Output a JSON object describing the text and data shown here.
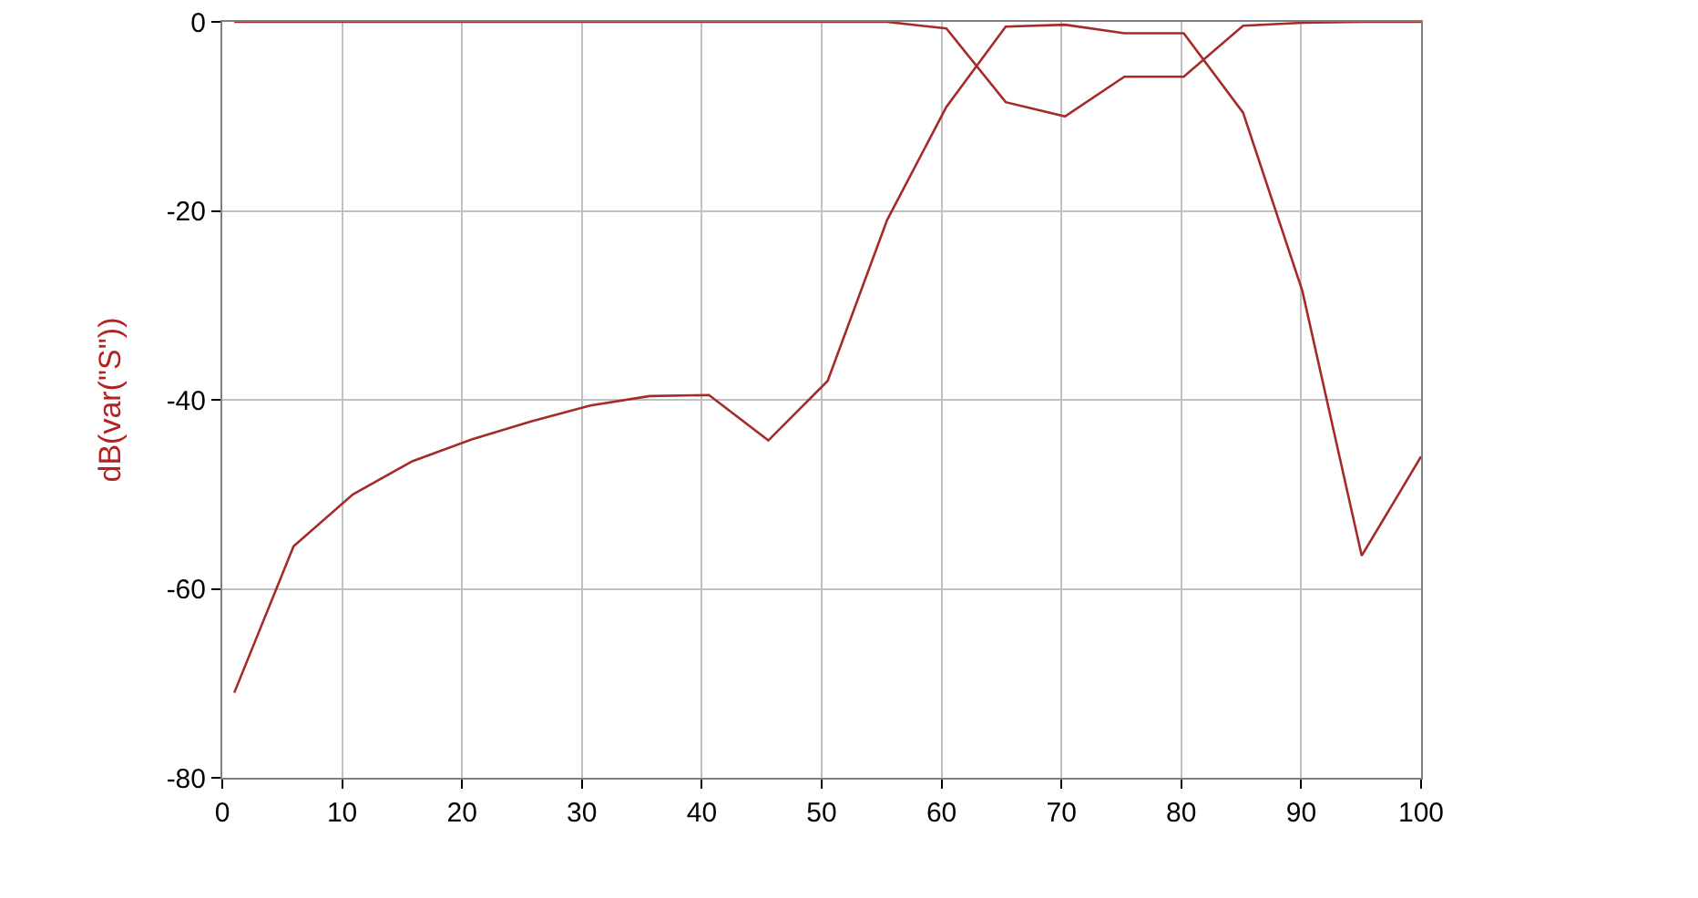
{
  "chart_data": {
    "type": "line",
    "ylabel": "dB(var(\"S\"))",
    "x": [
      1,
      5.95,
      10.9,
      15.85,
      20.8,
      25.75,
      30.7,
      35.65,
      40.6,
      45.55,
      50.5,
      55.45,
      60.4,
      65.35,
      70.3,
      75.25,
      80.2,
      85.15,
      90.1,
      95.05,
      100
    ],
    "series": [
      {
        "color": "#a52a2a",
        "values": [
          -71,
          -55.5,
          -50,
          -46.5,
          -44.2,
          -42.3,
          -40.6,
          -39.6,
          -39.5,
          -44.3,
          -38,
          -21,
          -9,
          -0.5,
          -0.3,
          -1.2,
          -1.2,
          -9.6,
          -28.5,
          -56.5,
          -46
        ]
      },
      {
        "color": "#a52a2a",
        "values": [
          0,
          0,
          0,
          0,
          0,
          0,
          0,
          0,
          0,
          0,
          0,
          0,
          -0.7,
          -8.5,
          -10,
          -5.8,
          -5.8,
          -0.4,
          -0.1,
          0,
          0
        ]
      }
    ],
    "xlim": [
      0,
      100
    ],
    "xticks": [
      0,
      10,
      20,
      30,
      40,
      50,
      60,
      70,
      80,
      90,
      100
    ],
    "ylim": [
      -80,
      0
    ],
    "yticks": [
      -80,
      -60,
      -40,
      -20,
      0
    ],
    "grid": true,
    "marker": "none",
    "line_style": "solid"
  }
}
